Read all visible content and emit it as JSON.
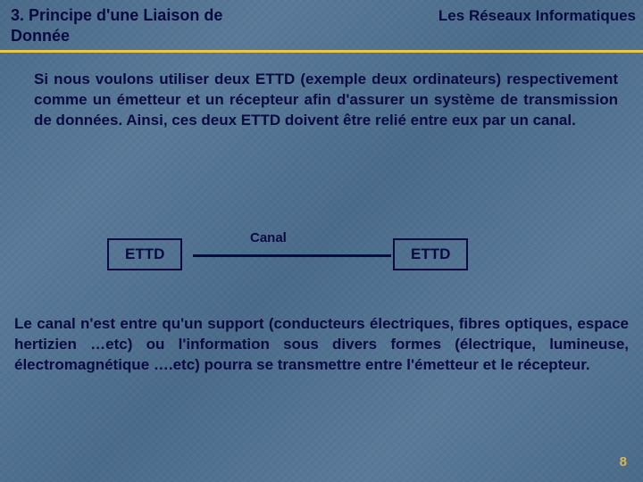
{
  "header": {
    "title_left": "3. Principe d'une Liaison de Donnée",
    "title_right": "Les Réseaux Informatiques"
  },
  "para1": "Si nous voulons utiliser deux ETTD (exemple deux ordinateurs) respectivement comme un émetteur et un récepteur afin d'assurer un système de transmission de données. Ainsi, ces deux ETTD doivent être relié entre eux par un canal.",
  "diagram": {
    "left_box": "ETTD",
    "right_box": "ETTD",
    "canal_label": "Canal",
    "box_border_color": "#0a0a40",
    "line_color": "#0a0a40"
  },
  "para2": "Le canal n'est entre qu'un support (conducteurs électriques, fibres optiques, espace hertizien …etc) ou l'information sous divers formes (électrique, lumineuse, électromagnétique ….etc) pourra se transmettre entre l'émetteur et le récepteur.",
  "page_number": "8",
  "colors": {
    "text_dark": "#0a0a40",
    "accent_yellow": "#e6c84a",
    "background_base": "#4a6b8a"
  },
  "typography": {
    "title_fontsize": 18,
    "body_fontsize": 17,
    "body_weight": "bold",
    "font_family": "Verdana"
  }
}
